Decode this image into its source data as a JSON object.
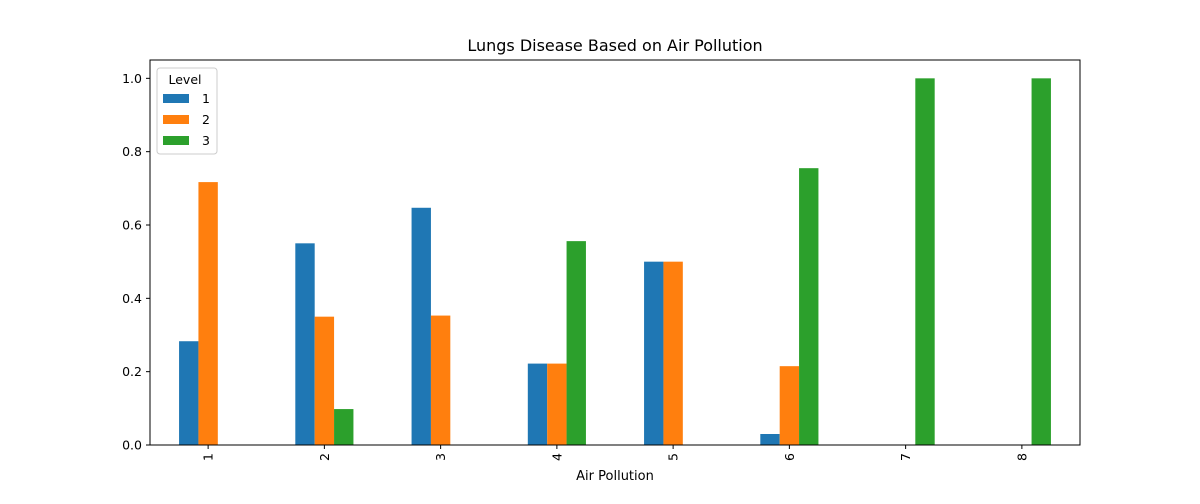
{
  "chart_data": {
    "type": "bar",
    "title": "Lungs Disease Based on Air Pollution",
    "xlabel": "Air Pollution",
    "ylabel": "",
    "categories": [
      "1",
      "2",
      "3",
      "4",
      "5",
      "6",
      "7",
      "8"
    ],
    "ylim": [
      0,
      1.05
    ],
    "yticks": [
      "0.0",
      "0.2",
      "0.4",
      "0.6",
      "0.8",
      "1.0"
    ],
    "grid": false,
    "legend": {
      "title": "Level",
      "placement": "top-left"
    },
    "series": [
      {
        "name": "1",
        "color": "#1f77b4",
        "values": [
          0.283,
          0.55,
          0.647,
          0.222,
          0.5,
          0.03,
          0,
          0
        ]
      },
      {
        "name": "2",
        "color": "#ff7f0e",
        "values": [
          0.717,
          0.35,
          0.353,
          0.222,
          0.5,
          0.215,
          0,
          0
        ]
      },
      {
        "name": "3",
        "color": "#2ca02c",
        "values": [
          0,
          0.098,
          0,
          0.556,
          0,
          0.755,
          1.0,
          1.0
        ]
      }
    ]
  }
}
